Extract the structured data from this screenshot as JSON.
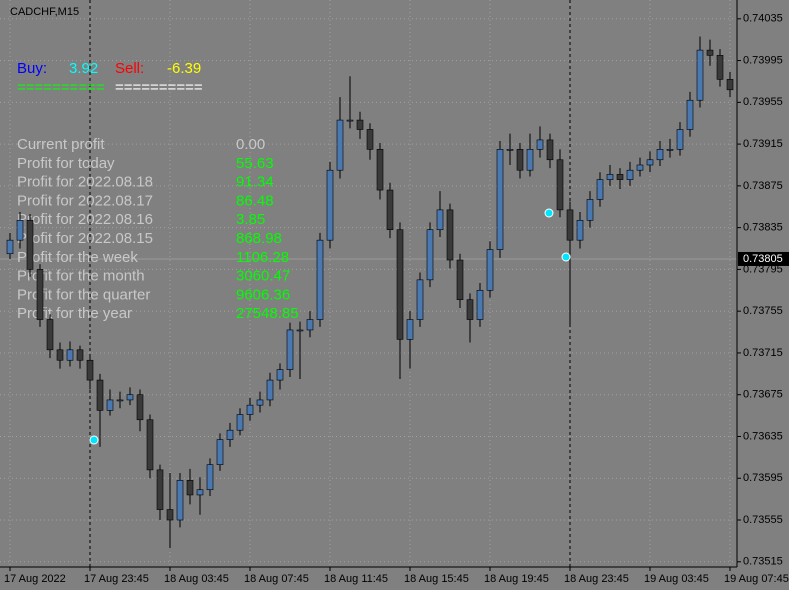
{
  "chart_data": {
    "type": "candlestick",
    "symbol": "CADCHF,M15",
    "categories": [
      "17 Aug 2022",
      null,
      null,
      null,
      null,
      null,
      null,
      null,
      "17 Aug 23:45",
      null,
      null,
      null,
      null,
      null,
      null,
      null,
      "18 Aug 03:45",
      null,
      null,
      null,
      null,
      null,
      null,
      null,
      "18 Aug 07:45",
      null,
      null,
      null,
      null,
      null,
      null,
      null,
      "18 Aug 11:45",
      null,
      null,
      null,
      null,
      null,
      null,
      null,
      "18 Aug 15:45",
      null,
      null,
      null,
      null,
      null,
      null,
      null,
      "18 Aug 19:45",
      null,
      null,
      null,
      null,
      null,
      null,
      null,
      "18 Aug 23:45",
      null,
      null,
      null,
      null,
      null,
      null,
      null,
      "19 Aug 03:45",
      null,
      null,
      null,
      null,
      null,
      null,
      null,
      "19 Aug 07:45"
    ],
    "open": [
      0.7381,
      0.73823,
      0.73842,
      0.73795,
      0.73747,
      0.73718,
      0.73708,
      0.73718,
      0.73708,
      0.73689,
      0.7366,
      0.7367,
      0.7367,
      0.73675,
      0.73651,
      0.73603,
      0.73565,
      0.73555,
      0.73593,
      0.73579,
      0.73584,
      0.73608,
      0.73632,
      0.73641,
      0.73656,
      0.73665,
      0.7367,
      0.73689,
      0.73699,
      0.73737,
      0.73737,
      0.73747,
      0.73823,
      0.7389,
      0.73938,
      0.73938,
      0.73929,
      0.7391,
      0.73871,
      0.73833,
      0.73728,
      0.73747,
      0.73785,
      0.73833,
      0.73852,
      0.73804,
      0.73766,
      0.73747,
      0.73775,
      0.73814,
      0.7391,
      0.7391,
      0.7389,
      0.7391,
      0.73919,
      0.739,
      0.73852,
      0.73823,
      0.73842,
      0.73862,
      0.73881,
      0.73886,
      0.73881,
      0.7389,
      0.73895,
      0.739,
      0.7391,
      0.7391,
      0.73929,
      0.73957,
      0.74005,
      0.74,
      0.73977
    ],
    "high": [
      0.7383,
      0.7385,
      0.73848,
      0.738,
      0.73752,
      0.73725,
      0.73726,
      0.73722,
      0.73714,
      0.73695,
      0.7368,
      0.73678,
      0.73682,
      0.7368,
      0.73656,
      0.73608,
      0.736,
      0.736,
      0.73604,
      0.73596,
      0.73614,
      0.73638,
      0.73648,
      0.73662,
      0.73672,
      0.73678,
      0.73696,
      0.73705,
      0.73744,
      0.73745,
      0.73755,
      0.7383,
      0.73898,
      0.7396,
      0.7398,
      0.73946,
      0.73935,
      0.73916,
      0.73878,
      0.7384,
      0.73755,
      0.73792,
      0.7384,
      0.7387,
      0.73858,
      0.7381,
      0.73772,
      0.73782,
      0.73822,
      0.73918,
      0.73925,
      0.73916,
      0.73925,
      0.73932,
      0.73925,
      0.7391,
      0.7386,
      0.7385,
      0.7387,
      0.73888,
      0.73895,
      0.73892,
      0.73898,
      0.73902,
      0.73908,
      0.73918,
      0.7392,
      0.73936,
      0.73965,
      0.74018,
      0.74015,
      0.74006,
      0.73984
    ],
    "low": [
      0.73805,
      0.73815,
      0.73788,
      0.7374,
      0.7371,
      0.737,
      0.73702,
      0.737,
      0.7368,
      0.73625,
      0.73655,
      0.73662,
      0.73665,
      0.7364,
      0.73595,
      0.73555,
      0.73528,
      0.73548,
      0.7357,
      0.7356,
      0.73578,
      0.73602,
      0.73625,
      0.73636,
      0.7365,
      0.73658,
      0.73664,
      0.7368,
      0.73692,
      0.7369,
      0.7373,
      0.7374,
      0.73815,
      0.73882,
      0.7393,
      0.7392,
      0.739,
      0.73862,
      0.73825,
      0.7369,
      0.737,
      0.7374,
      0.73778,
      0.73826,
      0.73796,
      0.73758,
      0.73725,
      0.7374,
      0.73768,
      0.73806,
      0.73895,
      0.73882,
      0.73884,
      0.73902,
      0.73892,
      0.73845,
      0.7374,
      0.73815,
      0.73835,
      0.73855,
      0.73875,
      0.73872,
      0.73875,
      0.73884,
      0.73888,
      0.73894,
      0.73902,
      0.73904,
      0.73922,
      0.7395,
      0.7399,
      0.7397,
      0.7396
    ],
    "close": [
      0.73823,
      0.73842,
      0.73795,
      0.73747,
      0.73718,
      0.73708,
      0.73718,
      0.73708,
      0.73689,
      0.7366,
      0.7367,
      0.7367,
      0.73675,
      0.73651,
      0.73603,
      0.73565,
      0.73555,
      0.73593,
      0.73579,
      0.73584,
      0.73608,
      0.73632,
      0.73641,
      0.73656,
      0.73665,
      0.7367,
      0.73689,
      0.73699,
      0.73737,
      0.73737,
      0.73747,
      0.73823,
      0.7389,
      0.73938,
      0.73938,
      0.73929,
      0.7391,
      0.73871,
      0.73833,
      0.73728,
      0.73747,
      0.73785,
      0.73833,
      0.73852,
      0.73804,
      0.73766,
      0.73747,
      0.73775,
      0.73814,
      0.7391,
      0.7391,
      0.7389,
      0.7391,
      0.73919,
      0.739,
      0.73852,
      0.73823,
      0.73842,
      0.73862,
      0.73881,
      0.73886,
      0.73881,
      0.7389,
      0.73895,
      0.739,
      0.7391,
      0.7391,
      0.73929,
      0.73957,
      0.74005,
      0.74,
      0.73977,
      0.73967
    ],
    "up_color": "#4a78b0",
    "down_color": "#3a3a3a",
    "ylim": [
      0.7351,
      0.74053
    ],
    "yticks": [
      0.74035,
      0.73995,
      0.73955,
      0.73915,
      0.73875,
      0.73835,
      0.73795,
      0.73755,
      0.73715,
      0.73675,
      0.73635,
      0.73595,
      0.73555,
      0.73515
    ],
    "current_price": 0.73805,
    "grid": true
  },
  "panel": {
    "buy_label": "Buy:",
    "buy_value": "3.92",
    "sell_label": "Sell:",
    "sell_value": "-6.39",
    "separator_buy": "==========",
    "separator_sell": "==========",
    "rows": [
      [
        "Current profit",
        "0.00"
      ],
      [
        "Profit for today",
        "55.63"
      ],
      [
        "Profit for 2022.08.18",
        "91.34"
      ],
      [
        "Profit for 2022.08.17",
        "86.48"
      ],
      [
        "Profit for 2022.08.16",
        "3.85"
      ],
      [
        "Profit for 2022.08.15",
        "868.98"
      ],
      [
        "Profit for the week",
        "1106.28"
      ],
      [
        "Profit for the month",
        "3060.47"
      ],
      [
        "Profit for the quarter",
        "9606.36"
      ],
      [
        "Profit for the year",
        "27548.85"
      ]
    ]
  }
}
